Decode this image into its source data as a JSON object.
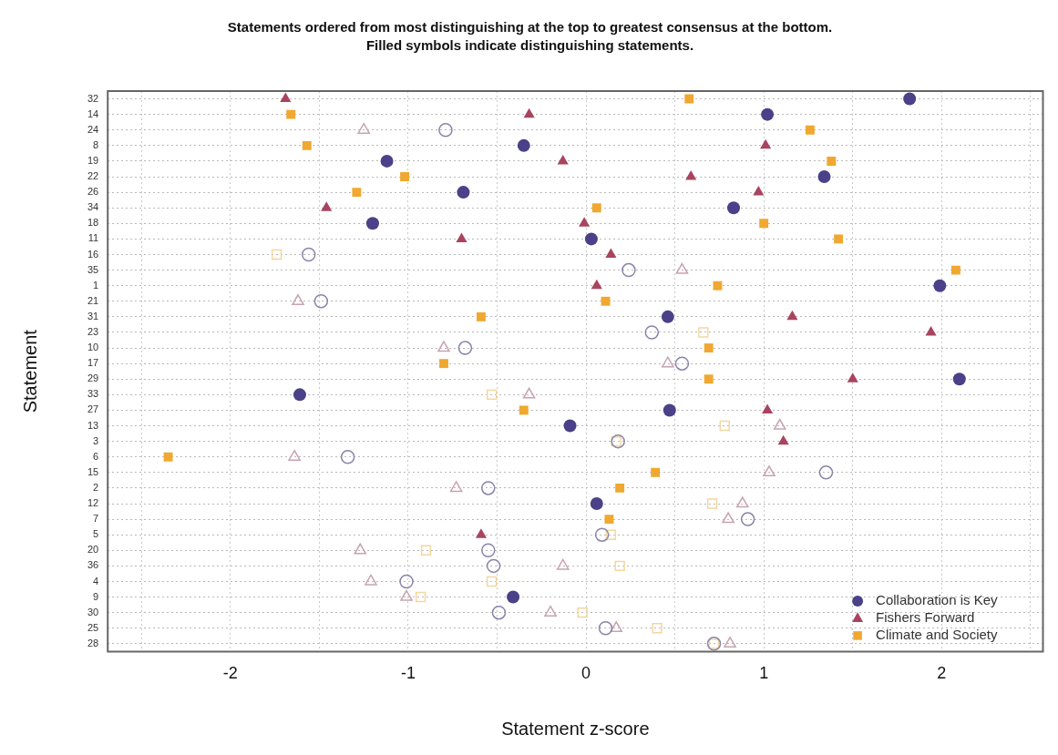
{
  "chart_data": {
    "type": "scatter",
    "orientation": "horizontal",
    "title": "Statements ordered from most distinguishing at the top to greatest consensus at the bottom.",
    "subtitle": "Filled symbols indicate distinguishing statements.",
    "xlabel": "Statement z-score",
    "ylabel": "Statement",
    "categories": [
      "32",
      "14",
      "24",
      "8",
      "19",
      "22",
      "26",
      "34",
      "18",
      "11",
      "16",
      "35",
      "1",
      "21",
      "31",
      "23",
      "10",
      "17",
      "29",
      "33",
      "27",
      "13",
      "3",
      "6",
      "15",
      "2",
      "12",
      "7",
      "5",
      "20",
      "36",
      "4",
      "9",
      "30",
      "25",
      "28"
    ],
    "xlim": [
      -2.69,
      2.57
    ],
    "xticks": [
      {
        "value": -2.5,
        "label": null
      },
      -2,
      {
        "value": -1.5,
        "label": null
      },
      -1,
      {
        "value": -0.5,
        "label": null
      },
      0,
      {
        "value": 0.5,
        "label": null
      },
      1,
      {
        "value": 1.5,
        "label": null
      },
      2,
      {
        "value": 2.5,
        "label": null
      }
    ],
    "grid": true,
    "legend": "bottom right",
    "series": [
      {
        "name": "Collaboration is Key",
        "color": "#4a4189",
        "marker": "circle",
        "values": [
          1.82,
          1.02,
          null,
          -0.35,
          -1.12,
          1.34,
          -0.69,
          0.83,
          -1.2,
          0.03,
          null,
          null,
          1.99,
          null,
          0.46,
          null,
          null,
          null,
          2.1,
          -1.61,
          0.47,
          -0.09,
          null,
          null,
          null,
          null,
          0.06,
          null,
          null,
          null,
          null,
          null,
          -0.41,
          null,
          null,
          null
        ]
      },
      {
        "name": "Fishers Forward",
        "color": "#a8445f",
        "marker": "triangle",
        "values": [
          -1.69,
          -0.32,
          null,
          1.01,
          -0.13,
          0.59,
          0.97,
          -1.46,
          -0.01,
          -0.7,
          0.14,
          null,
          0.06,
          null,
          1.16,
          1.94,
          null,
          null,
          1.5,
          null,
          1.02,
          null,
          1.11,
          null,
          null,
          null,
          null,
          null,
          -0.59,
          null,
          null,
          null,
          null,
          null,
          null,
          null
        ]
      },
      {
        "name": "Climate and Society",
        "color": "#f0a830",
        "marker": "square",
        "values": [
          0.58,
          -1.66,
          1.26,
          -1.57,
          1.38,
          -1.02,
          -1.29,
          0.06,
          1.0,
          1.42,
          null,
          2.08,
          0.74,
          0.11,
          -0.59,
          null,
          0.69,
          -0.8,
          0.69,
          null,
          -0.35,
          null,
          null,
          -2.35,
          0.39,
          0.19,
          null,
          0.13,
          null,
          null,
          null,
          null,
          null,
          null,
          null,
          null
        ]
      },
      {
        "color": "#8a84aa",
        "marker": "circle",
        "values": [
          null,
          null,
          -0.79,
          null,
          null,
          null,
          null,
          null,
          null,
          null,
          -1.56,
          0.24,
          null,
          -1.49,
          null,
          0.37,
          -0.68,
          0.54,
          null,
          null,
          null,
          null,
          0.18,
          -1.34,
          1.35,
          -0.55,
          null,
          0.91,
          0.09,
          -0.55,
          -0.52,
          -1.01,
          null,
          -0.49,
          0.11,
          0.72
        ]
      },
      {
        "color": "#c8a3b0",
        "marker": "triangle",
        "values": [
          null,
          null,
          -1.25,
          null,
          null,
          null,
          null,
          null,
          null,
          null,
          null,
          0.54,
          null,
          -1.62,
          null,
          null,
          -0.8,
          0.46,
          null,
          -0.32,
          null,
          1.09,
          null,
          -1.64,
          1.03,
          -0.73,
          0.88,
          0.8,
          null,
          -1.27,
          -0.13,
          -1.21,
          -1.01,
          -0.2,
          0.17,
          0.81
        ]
      },
      {
        "color": "#f2d7a0",
        "marker": "square",
        "values": [
          null,
          null,
          null,
          null,
          null,
          null,
          null,
          null,
          null,
          null,
          -1.74,
          null,
          null,
          null,
          null,
          0.66,
          null,
          null,
          null,
          -0.53,
          null,
          0.78,
          0.17,
          null,
          null,
          null,
          0.71,
          null,
          0.14,
          -0.9,
          0.19,
          -0.53,
          -0.93,
          -0.02,
          0.4,
          0.72
        ]
      }
    ]
  }
}
